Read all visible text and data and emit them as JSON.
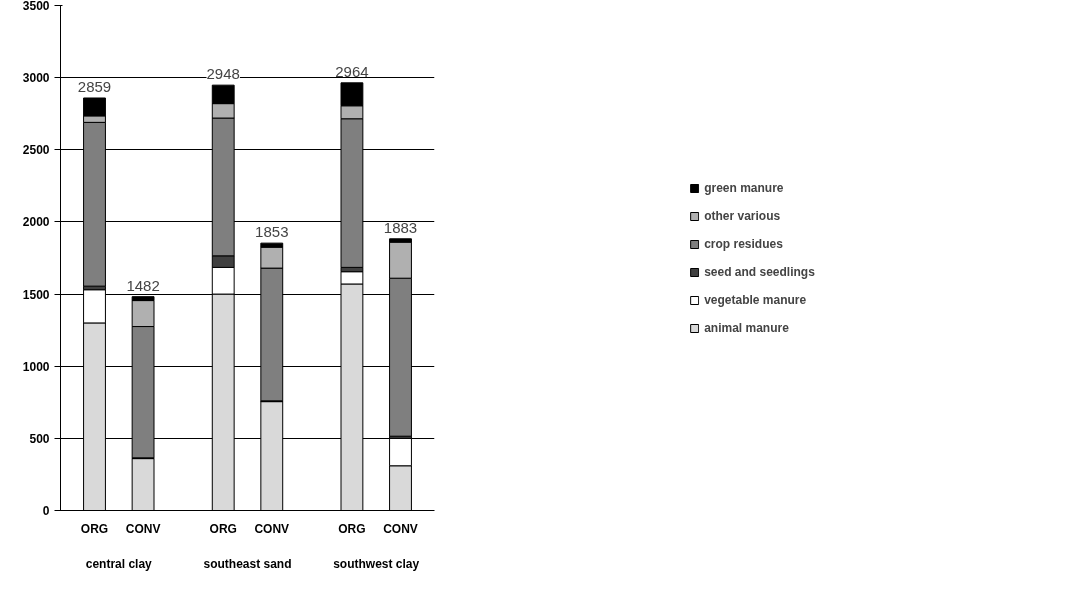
{
  "chart_data": {
    "type": "bar",
    "stacked": true,
    "categories": [
      "ORG",
      "CONV",
      "ORG",
      "CONV",
      "ORG",
      "CONV"
    ],
    "series": [
      {
        "name": "animal manure",
        "color": "#d9d9d9",
        "values": [
          1300,
          360,
          1500,
          755,
          1570,
          310
        ]
      },
      {
        "name": "vegetable manure",
        "color": "#ffffff",
        "values": [
          230,
          0,
          185,
          0,
          85,
          190
        ]
      },
      {
        "name": "seed and seedlings",
        "color": "#404040",
        "values": [
          25,
          5,
          80,
          5,
          30,
          15
        ]
      },
      {
        "name": "crop residues",
        "color": "#7f7f7f",
        "values": [
          1135,
          910,
          955,
          920,
          1030,
          1095
        ]
      },
      {
        "name": "other various",
        "color": "#b0b0b0",
        "values": [
          45,
          180,
          100,
          145,
          90,
          250
        ]
      },
      {
        "name": "green manure",
        "color": "#000000",
        "values": [
          124,
          27,
          128,
          28,
          159,
          23
        ]
      }
    ],
    "totals": [
      "2859",
      "1482",
      "2948",
      "1853",
      "2964",
      "1883"
    ],
    "annotations": [
      "central clay",
      "southeast sand",
      "southwest clay"
    ],
    "ylim": [
      0,
      3500
    ],
    "yticks": [
      0,
      500,
      1000,
      1500,
      2000,
      2500,
      3000,
      3500
    ],
    "grid": "y",
    "legend": "right"
  }
}
